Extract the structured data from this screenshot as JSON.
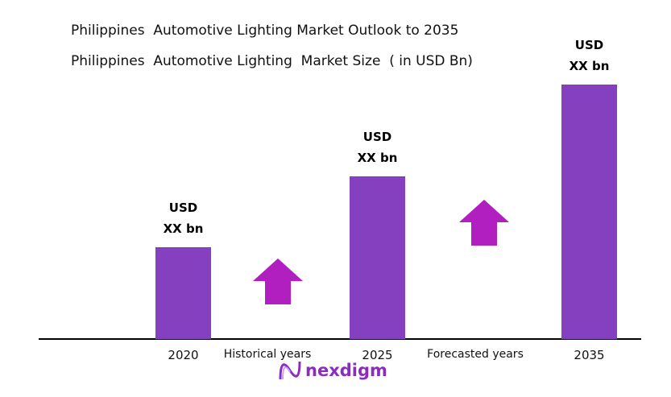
{
  "title": "Philippines  Automotive Lighting Market Outlook to 2035",
  "subtitle": "Philippines  Automotive Lighting  Market Size  ( in USD Bn)",
  "logo_text": "nexdigm",
  "colors": {
    "bar": "#8540c0",
    "arrow": "#b21fc0"
  },
  "chart_data": {
    "type": "bar",
    "categories": [
      "2020",
      "2025",
      "2035"
    ],
    "values": [
      36,
      64,
      100
    ],
    "data_labels": [
      [
        "USD",
        "XX bn"
      ],
      [
        "USD",
        "XX bn"
      ],
      [
        "USD",
        "XX bn"
      ]
    ],
    "annotations": [
      "Historical years",
      "Forecasted years"
    ],
    "grid": false,
    "legend": "none"
  }
}
